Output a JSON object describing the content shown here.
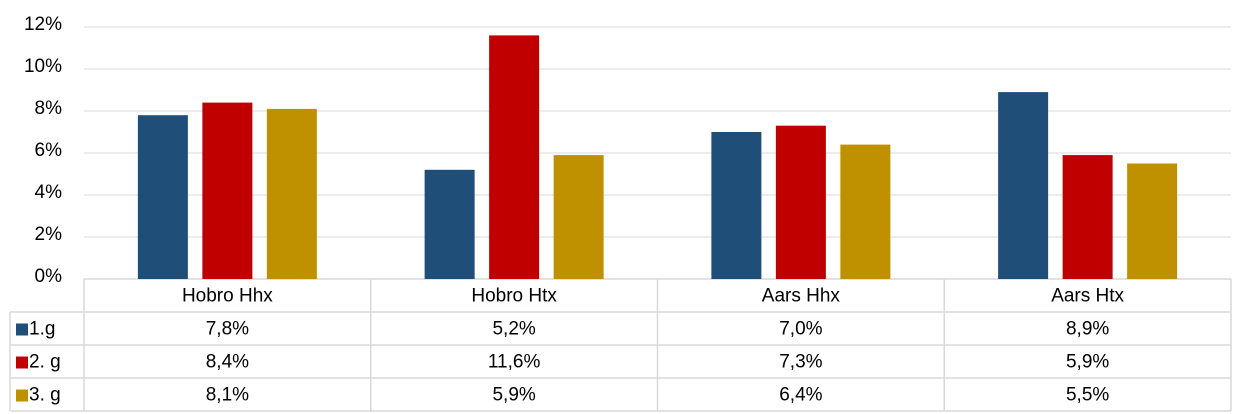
{
  "chart_data": {
    "type": "bar",
    "categories": [
      "Hobro Hhx",
      "Hobro Htx",
      "Aars Hhx",
      "Aars Htx"
    ],
    "series": [
      {
        "name": "1.g",
        "color": "#1f4e79",
        "values": [
          7.8,
          5.2,
          7.0,
          8.9
        ],
        "value_labels": [
          "7,8%",
          "5,2%",
          "7,0%",
          "8,9%"
        ]
      },
      {
        "name": "2. g",
        "color": "#c00000",
        "values": [
          8.4,
          11.6,
          7.3,
          5.9
        ],
        "value_labels": [
          "8,4%",
          "11,6%",
          "7,3%",
          "5,9%"
        ]
      },
      {
        "name": "3. g",
        "color": "#bf9000",
        "values": [
          8.1,
          5.9,
          6.4,
          5.5
        ],
        "value_labels": [
          "8,1%",
          "5,9%",
          "6,4%",
          "5,5%"
        ]
      }
    ],
    "ylim": [
      0,
      12
    ],
    "yticks": [
      {
        "value": 0,
        "label": "0%"
      },
      {
        "value": 2,
        "label": "2%"
      },
      {
        "value": 4,
        "label": "4%"
      },
      {
        "value": 6,
        "label": "6%"
      },
      {
        "value": 8,
        "label": "8%"
      },
      {
        "value": 10,
        "label": "10%"
      },
      {
        "value": 12,
        "label": "12%"
      }
    ],
    "grid": true
  }
}
